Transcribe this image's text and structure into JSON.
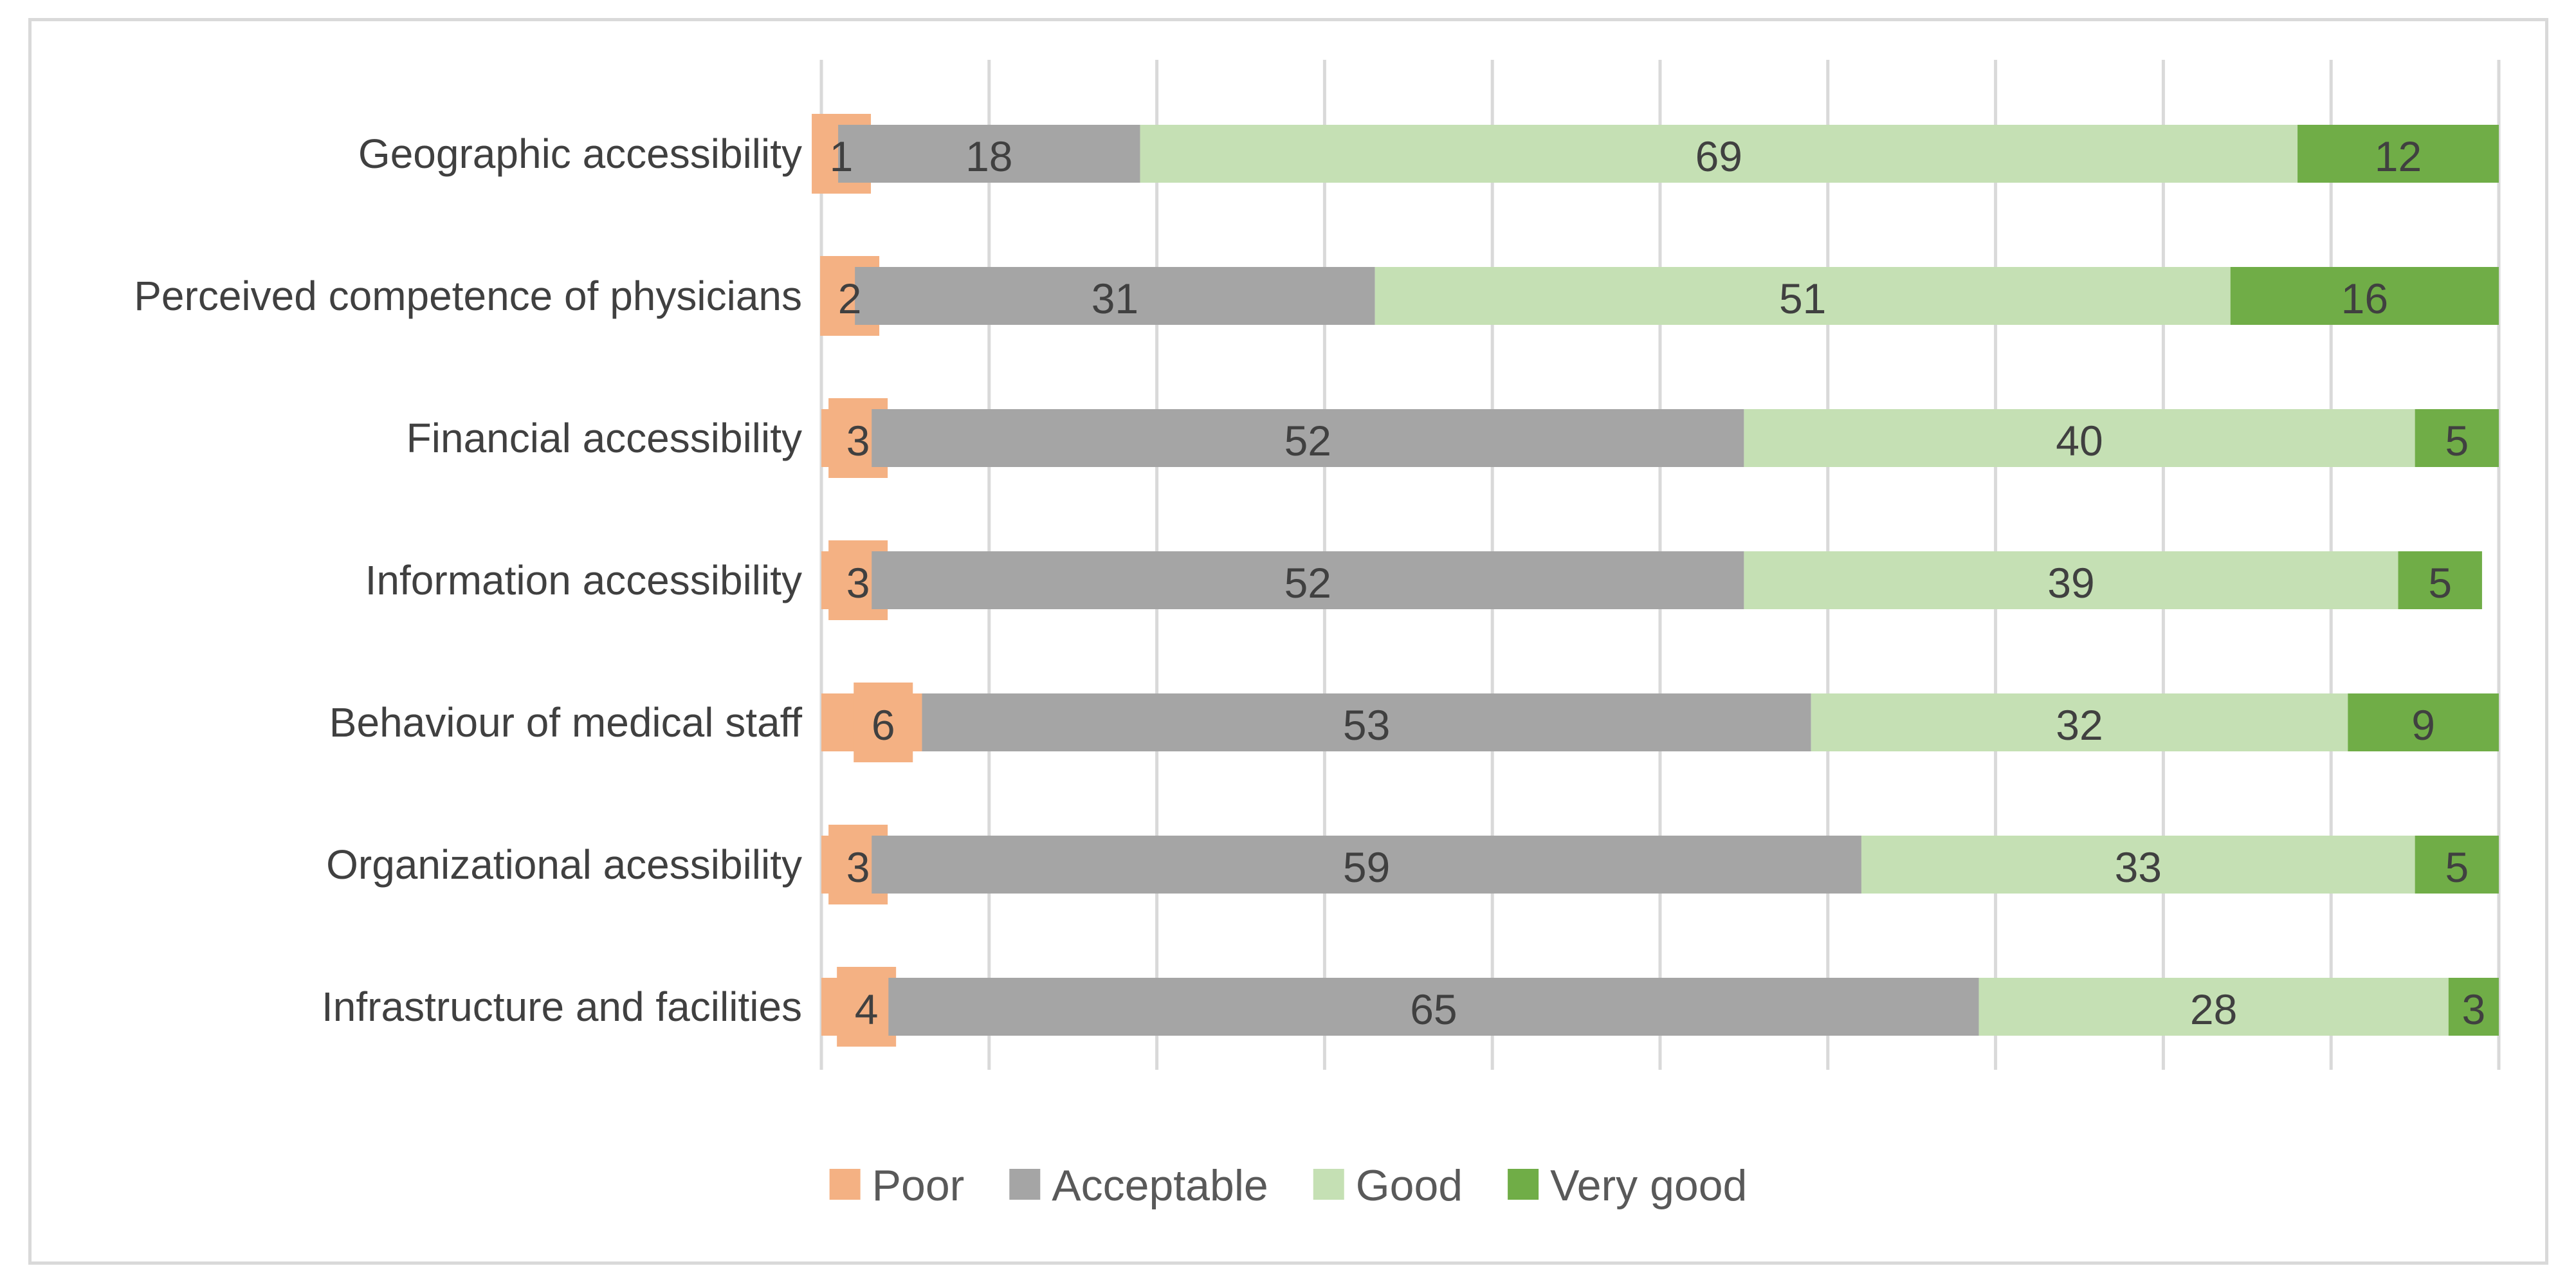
{
  "chart_data": {
    "type": "bar",
    "orientation": "horizontal",
    "stacked": true,
    "title": "",
    "xlabel": "",
    "ylabel": "",
    "xlim": [
      0,
      100
    ],
    "grid": true,
    "legend_position": "bottom",
    "categories": [
      "Geographic accessibility",
      "Perceived competence of physicians",
      "Financial accessibility",
      "Information accessibility",
      "Behaviour of medical staff",
      "Organizational acessibility",
      "Infrastructure and facilities"
    ],
    "series": [
      {
        "name": "Poor",
        "color": "#f4b183",
        "values": [
          1,
          2,
          3,
          3,
          6,
          3,
          4
        ]
      },
      {
        "name": "Acceptable",
        "color": "#a5a5a5",
        "values": [
          18,
          31,
          52,
          52,
          53,
          59,
          65
        ]
      },
      {
        "name": "Good",
        "color": "#c5e0b4",
        "values": [
          69,
          51,
          40,
          39,
          32,
          33,
          28
        ]
      },
      {
        "name": "Very good",
        "color": "#70ad47",
        "values": [
          12,
          16,
          5,
          5,
          9,
          5,
          3
        ]
      }
    ]
  }
}
